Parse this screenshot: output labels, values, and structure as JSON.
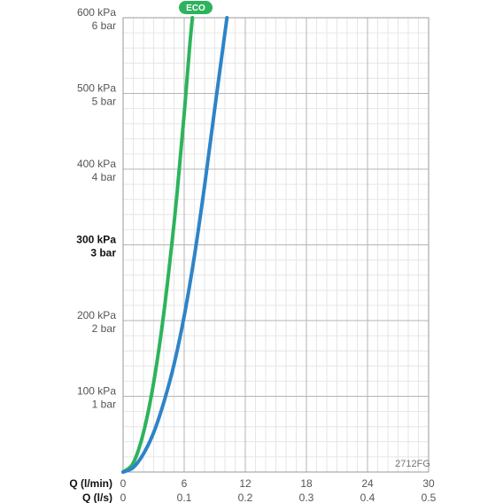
{
  "chart_data": {
    "type": "line",
    "xlabel_lmin": "Q (l/min)",
    "xlabel_ls": "Q (l/s)",
    "x_ticks_lmin": [
      "0",
      "6",
      "12",
      "18",
      "24",
      "30"
    ],
    "x_ticks_ls": [
      "0",
      "0.1",
      "0.2",
      "0.3",
      "0.4",
      "0.5"
    ],
    "xlim": [
      0,
      30
    ],
    "ylim": [
      0,
      600
    ],
    "y_ticks": [
      {
        "value": 600,
        "kpa": "600 kPa",
        "bar": "6 bar",
        "bold": false
      },
      {
        "value": 500,
        "kpa": "500 kPa",
        "bar": "5 bar",
        "bold": false
      },
      {
        "value": 400,
        "kpa": "400 kPa",
        "bar": "4 bar",
        "bold": false
      },
      {
        "value": 300,
        "kpa": "300 kPa",
        "bar": "3 bar",
        "bold": true
      },
      {
        "value": 200,
        "kpa": "200 kPa",
        "bar": "2 bar",
        "bold": false
      },
      {
        "value": 100,
        "kpa": "100 kPa",
        "bar": "1 bar",
        "bold": false
      }
    ],
    "grid": true,
    "series": [
      {
        "name": "ECO",
        "color": "#2db35d",
        "x": [
          0,
          1,
          2,
          3,
          4,
          5,
          5.5,
          6,
          6.5,
          6.8
        ],
        "y": [
          0,
          12,
          52,
          118,
          210,
          328,
          398,
          473,
          556,
          600
        ]
      },
      {
        "name": "",
        "color": "#2d84c8",
        "x": [
          0,
          1,
          2,
          3,
          4,
          5,
          6,
          7,
          8,
          9,
          10.2
        ],
        "y": [
          0,
          6,
          24,
          52,
          92,
          142,
          206,
          285,
          378,
          480,
          600
        ]
      }
    ],
    "code_label": "2712FG",
    "eco_badge": "ECO"
  }
}
